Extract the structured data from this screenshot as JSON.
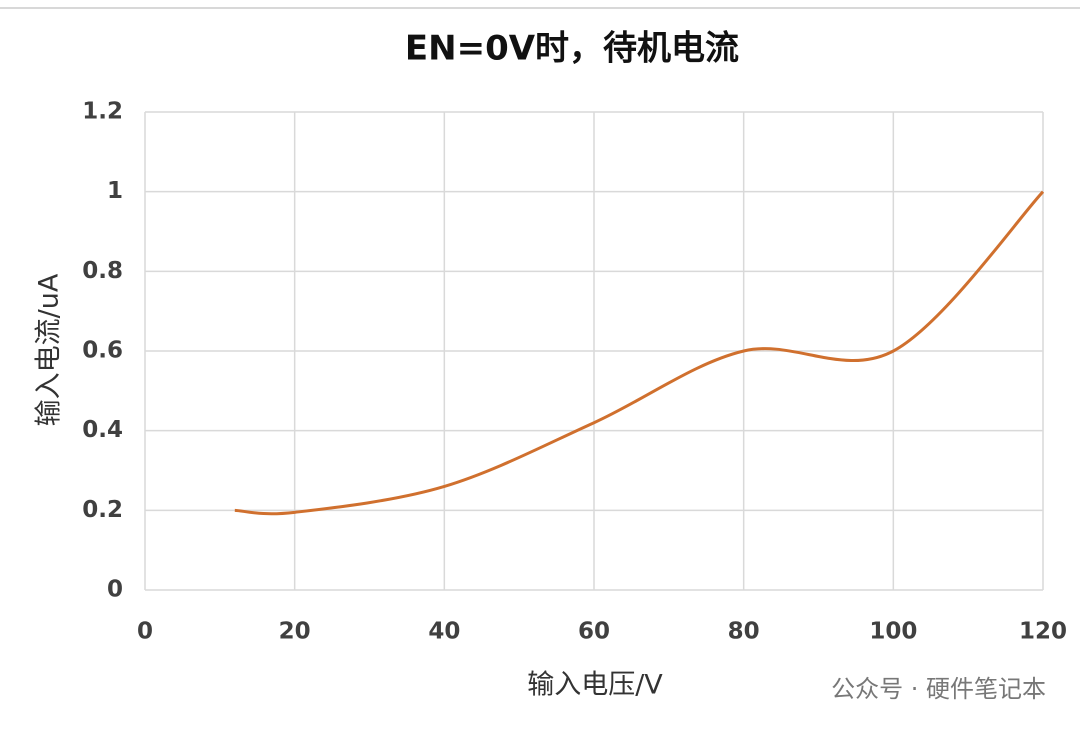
{
  "chart_data": {
    "type": "line",
    "title": "EN=0V时，待机电流",
    "x_label": "输入电压/V",
    "y_label": "输入电流/uA",
    "x": [
      12,
      20,
      40,
      60,
      80,
      100,
      120
    ],
    "series": [
      {
        "name": "待机电流",
        "color": "#d0702e",
        "values": [
          0.2,
          0.195,
          0.26,
          0.42,
          0.6,
          0.6,
          1.0
        ]
      }
    ],
    "xlim": [
      0,
      120
    ],
    "xticks": [
      0,
      20,
      40,
      60,
      80,
      100,
      120
    ],
    "ylim": [
      0,
      1.2
    ],
    "yticks": [
      0,
      0.2,
      0.4,
      0.6,
      0.8,
      1,
      1.2
    ],
    "grid": true,
    "smooth": true
  },
  "watermark": "公众号 · 硬件笔记本"
}
